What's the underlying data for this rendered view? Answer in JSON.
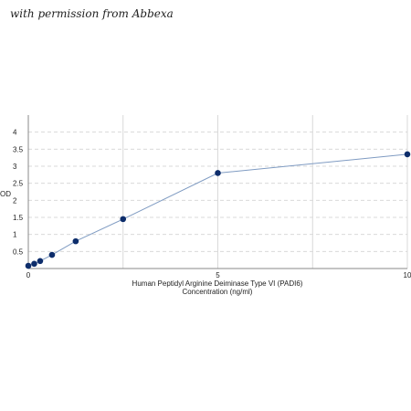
{
  "watermark": "with permission from Abbexa",
  "chart_data": {
    "type": "line",
    "x": [
      0,
      0.156,
      0.312,
      0.625,
      1.25,
      2.5,
      5,
      10
    ],
    "series": [
      {
        "values": [
          0.08,
          0.14,
          0.22,
          0.4,
          0.8,
          1.45,
          2.8,
          3.35
        ]
      }
    ],
    "xlabel": [
      "Human Peptidyl Arginine Deiminase Type VI (PADI6)",
      "Concentration (ng/ml)"
    ],
    "ylabel": "OD",
    "xlim": [
      0,
      10
    ],
    "ylim": [
      0,
      4.5
    ],
    "x_ticks": [
      "0",
      "5",
      "10"
    ],
    "y_ticks": [
      "0.5",
      "1",
      "1.5",
      "2",
      "2.5",
      "3",
      "3.5",
      "4"
    ],
    "grid": "vertical solid, horizontal dashed",
    "colors": {
      "line": "#7f9bc2",
      "marker": "#0d2d6b",
      "grid": "#d9d9d9",
      "axis": "#888888"
    }
  }
}
